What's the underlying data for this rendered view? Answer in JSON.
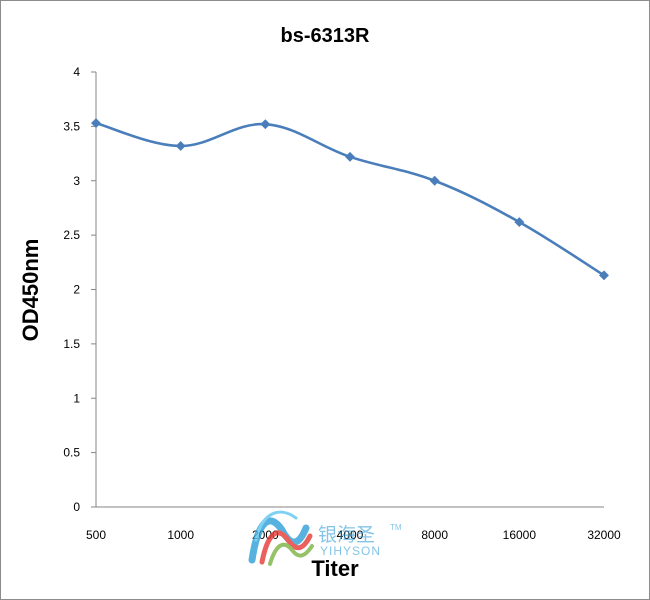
{
  "chart_data": {
    "type": "line",
    "title": "bs-6313R",
    "xlabel": "Titer",
    "ylabel": "OD450nm",
    "categories": [
      "500",
      "1000",
      "2000",
      "4000",
      "8000",
      "16000",
      "32000"
    ],
    "series": [
      {
        "values": [
          3.53,
          3.32,
          3.52,
          3.22,
          3.0,
          2.62,
          2.13
        ]
      }
    ],
    "ylim": [
      0,
      4
    ],
    "yticks": [
      "0",
      "0.5",
      "1",
      "1.5",
      "2",
      "2.5",
      "3",
      "3.5",
      "4"
    ],
    "grid": false,
    "legend": "none",
    "line_color": "#4a7ebb"
  },
  "watermark": {
    "cn_text": "银海圣",
    "en_text": "YIHYSON",
    "tm": "TM"
  }
}
